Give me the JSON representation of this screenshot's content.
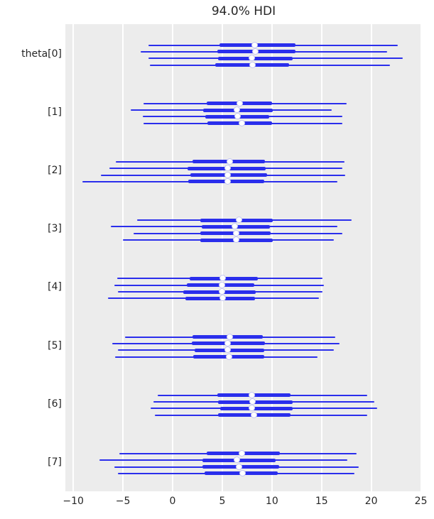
{
  "title": "94.0% HDI",
  "colors": {
    "line": "#2a2eec",
    "plot_background": "#ececec",
    "grid": "#ffffff",
    "text": "#262626",
    "marker_face": "#ffffff",
    "marker_edge": "#c3c5f3"
  },
  "chart_data": {
    "type": "forest",
    "title": "94.0% HDI",
    "hdi_prob": 0.94,
    "xlabel": "",
    "ylabel": "",
    "xlim": [
      -10.8,
      25.1
    ],
    "x_ticks": [
      -10,
      -5,
      0,
      5,
      10,
      15,
      20,
      25
    ],
    "grid": "vertical white gridlines on gray panel",
    "legend_position": "none",
    "chains_per_parameter": 4,
    "value_format": "hdi_low / q25 / median / q75 / hdi_high",
    "parameters": [
      {
        "label": "theta[0]",
        "chains": [
          {
            "hdi_low": -2.4,
            "q25": 4.7,
            "median": 8.3,
            "q75": 12.4,
            "hdi_high": 22.7
          },
          {
            "hdi_low": -3.2,
            "q25": 4.5,
            "median": 8.4,
            "q75": 12.4,
            "hdi_high": 21.6
          },
          {
            "hdi_low": -2.4,
            "q25": 4.6,
            "median": 8.0,
            "q75": 12.1,
            "hdi_high": 23.2
          },
          {
            "hdi_low": -2.3,
            "q25": 4.3,
            "median": 8.1,
            "q75": 11.7,
            "hdi_high": 21.9
          }
        ]
      },
      {
        "label": "[1]",
        "chains": [
          {
            "hdi_low": -2.9,
            "q25": 3.4,
            "median": 6.8,
            "q75": 10.0,
            "hdi_high": 17.5
          },
          {
            "hdi_low": -4.2,
            "q25": 3.1,
            "median": 6.5,
            "q75": 10.1,
            "hdi_high": 16.0
          },
          {
            "hdi_low": -3.0,
            "q25": 3.3,
            "median": 6.6,
            "q75": 9.7,
            "hdi_high": 17.1
          },
          {
            "hdi_low": -2.9,
            "q25": 3.5,
            "median": 7.0,
            "q75": 10.0,
            "hdi_high": 17.1
          }
        ]
      },
      {
        "label": "[2]",
        "chains": [
          {
            "hdi_low": -5.7,
            "q25": 2.0,
            "median": 5.8,
            "q75": 9.3,
            "hdi_high": 17.3
          },
          {
            "hdi_low": -6.4,
            "q25": 1.5,
            "median": 5.6,
            "q75": 9.4,
            "hdi_high": 17.1
          },
          {
            "hdi_low": -7.2,
            "q25": 1.8,
            "median": 5.6,
            "q75": 9.5,
            "hdi_high": 17.4
          },
          {
            "hdi_low": -9.1,
            "q25": 1.6,
            "median": 5.6,
            "q75": 9.2,
            "hdi_high": 16.6
          }
        ]
      },
      {
        "label": "[3]",
        "chains": [
          {
            "hdi_low": -3.6,
            "q25": 2.8,
            "median": 6.7,
            "q75": 10.1,
            "hdi_high": 18.0
          },
          {
            "hdi_low": -6.2,
            "q25": 2.9,
            "median": 6.3,
            "q75": 9.8,
            "hdi_high": 16.6
          },
          {
            "hdi_low": -3.9,
            "q25": 2.8,
            "median": 6.4,
            "q75": 9.9,
            "hdi_high": 17.1
          },
          {
            "hdi_low": -5.0,
            "q25": 2.8,
            "median": 6.4,
            "q75": 10.1,
            "hdi_high": 16.2
          }
        ]
      },
      {
        "label": "[4]",
        "chains": [
          {
            "hdi_low": -5.6,
            "q25": 1.7,
            "median": 5.1,
            "q75": 8.6,
            "hdi_high": 15.1
          },
          {
            "hdi_low": -5.9,
            "q25": 1.4,
            "median": 5.0,
            "q75": 8.2,
            "hdi_high": 15.2
          },
          {
            "hdi_low": -5.5,
            "q25": 1.1,
            "median": 5.0,
            "q75": 8.4,
            "hdi_high": 15.1
          },
          {
            "hdi_low": -6.5,
            "q25": 1.3,
            "median": 5.1,
            "q75": 8.3,
            "hdi_high": 14.7
          }
        ]
      },
      {
        "label": "[5]",
        "chains": [
          {
            "hdi_low": -4.8,
            "q25": 2.0,
            "median": 5.8,
            "q75": 9.1,
            "hdi_high": 16.4
          },
          {
            "hdi_low": -6.1,
            "q25": 1.9,
            "median": 5.6,
            "q75": 9.3,
            "hdi_high": 16.8
          },
          {
            "hdi_low": -5.5,
            "q25": 2.2,
            "median": 5.6,
            "q75": 9.2,
            "hdi_high": 16.2
          },
          {
            "hdi_low": -5.8,
            "q25": 2.1,
            "median": 5.7,
            "q75": 9.2,
            "hdi_high": 14.6
          }
        ]
      },
      {
        "label": "[6]",
        "chains": [
          {
            "hdi_low": -1.5,
            "q25": 4.5,
            "median": 8.0,
            "q75": 11.9,
            "hdi_high": 19.6
          },
          {
            "hdi_low": -1.9,
            "q25": 4.6,
            "median": 8.1,
            "q75": 12.1,
            "hdi_high": 20.3
          },
          {
            "hdi_low": -2.2,
            "q25": 4.8,
            "median": 8.0,
            "q75": 12.1,
            "hdi_high": 20.6
          },
          {
            "hdi_low": -1.8,
            "q25": 4.6,
            "median": 8.2,
            "q75": 11.9,
            "hdi_high": 19.6
          }
        ]
      },
      {
        "label": "[7]",
        "chains": [
          {
            "hdi_low": -5.4,
            "q25": 3.4,
            "median": 7.0,
            "q75": 10.8,
            "hdi_high": 18.5
          },
          {
            "hdi_low": -7.4,
            "q25": 3.0,
            "median": 6.5,
            "q75": 10.4,
            "hdi_high": 17.6
          },
          {
            "hdi_low": -5.9,
            "q25": 3.0,
            "median": 6.7,
            "q75": 10.7,
            "hdi_high": 18.7
          },
          {
            "hdi_low": -5.5,
            "q25": 3.2,
            "median": 7.1,
            "q75": 10.6,
            "hdi_high": 18.3
          }
        ]
      }
    ]
  }
}
